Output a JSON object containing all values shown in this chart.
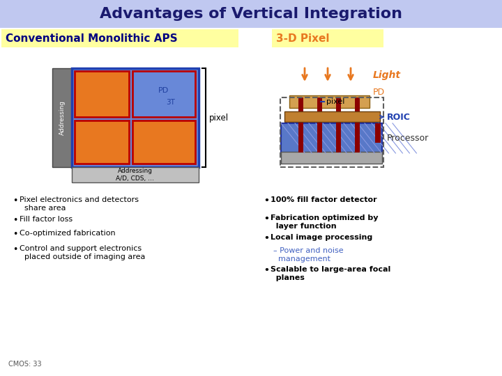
{
  "title": "Advantages of Vertical Integration",
  "title_bg_color": "#c0c8f0",
  "title_fontsize": 16,
  "bg_color": "#ffffff",
  "left_header": "Conventional Monolithic APS",
  "left_header_bg": "#ffffa0",
  "right_header": "3-D Pixel",
  "right_header_bg": "#ffffa0",
  "left_bullets": [
    "Pixel electronics and detectors\n  share area",
    "Fill factor loss",
    "Co-optimized fabrication",
    "Control and support electronics\n  placed outside of imaging area"
  ],
  "right_bullets": [
    "100% fill factor detector",
    "Fabrication optimized by\n  layer function",
    "Local image processing"
  ],
  "right_subbullet": "– Power and noise\n  management",
  "right_last_bullet": "Scalable to large-area focal\n  planes",
  "footer": "CMOS: 33",
  "orange_color": "#e87820",
  "blue_color": "#4060c0",
  "dark_red": "#800000",
  "tan_color": "#c89050",
  "gray_color": "#808080",
  "addr_color": "#787878",
  "blue_arr_color": "#6888d8",
  "blue_border_color": "#2040b0"
}
